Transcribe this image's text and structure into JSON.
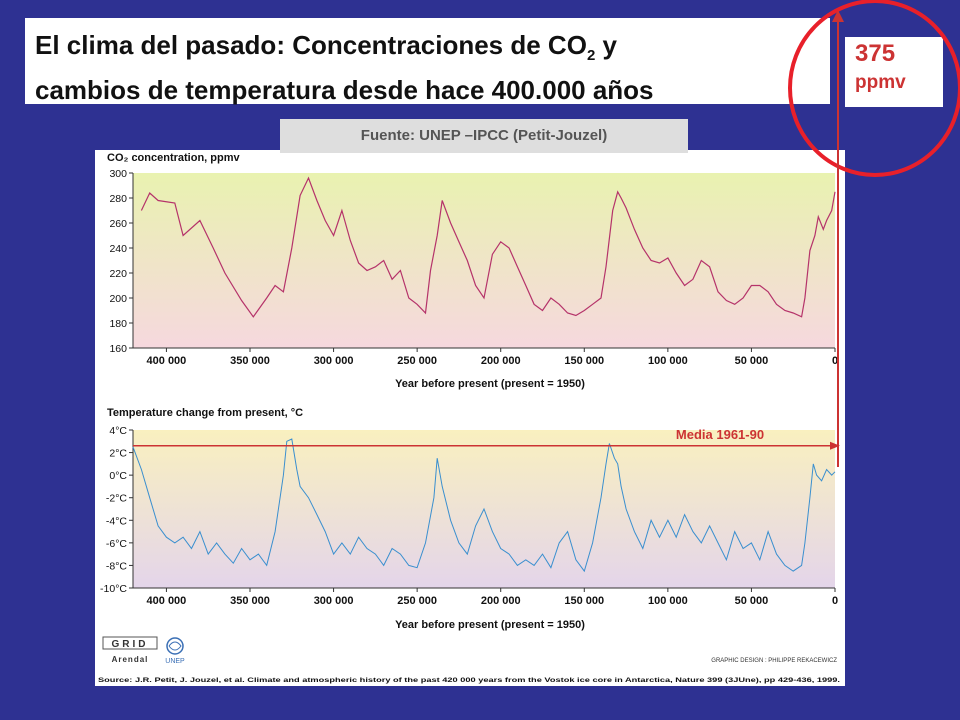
{
  "slide": {
    "title_line1_prefix": "El clima del pasado: Concentraciones de CO",
    "title_line1_sub": "2",
    "title_line1_suffix": " y",
    "title_line2": "cambios de temperatura desde hace 400.000 años",
    "source_tab": "Fuente: UNEP –IPCC (Petit-Jouzel)",
    "annotation_value": "375",
    "annotation_unit": "ppmv",
    "colors": {
      "background": "#2e3192",
      "annotation_red": "#cc3333"
    }
  },
  "chart_data": [
    {
      "type": "line",
      "title": "CO₂ concentration, ppmv",
      "xlabel": "Year before present (present = 1950)",
      "x_ticks": [
        "400 000",
        "350 000",
        "300 000",
        "250 000",
        "200 000",
        "150 000",
        "100 000",
        "50 000",
        "0"
      ],
      "y_ticks": [
        "300",
        "280",
        "260",
        "240",
        "220",
        "200",
        "180",
        "160"
      ],
      "xlim": [
        420000,
        0
      ],
      "ylim": [
        160,
        300
      ],
      "grid": false,
      "line_color": "#b5336a",
      "series": [
        {
          "x": [
            415000,
            410000,
            405000,
            395000,
            390000,
            380000,
            372000,
            365000,
            355000,
            348000,
            340000,
            335000,
            330000,
            325000,
            320000,
            315000,
            310000,
            305000,
            300000,
            295000,
            290000,
            285000,
            280000,
            275000,
            270000,
            265000,
            260000,
            255000,
            250000,
            245000,
            242000,
            238000,
            235000,
            230000,
            225000,
            220000,
            215000,
            210000,
            205000,
            200000,
            195000,
            190000,
            185000,
            180000,
            175000,
            170000,
            165000,
            160000,
            155000,
            150000,
            145000,
            140000,
            137000,
            133000,
            130000,
            128000,
            125000,
            120000,
            115000,
            110000,
            105000,
            100000,
            95000,
            90000,
            85000,
            80000,
            75000,
            70000,
            65000,
            60000,
            55000,
            50000,
            45000,
            40000,
            35000,
            30000,
            25000,
            20000,
            18000,
            15000,
            12000,
            10000,
            7000,
            5000,
            2000,
            0
          ],
          "values": [
            270,
            284,
            278,
            276,
            250,
            262,
            240,
            220,
            198,
            185,
            200,
            210,
            205,
            240,
            282,
            296,
            278,
            262,
            250,
            270,
            246,
            228,
            222,
            225,
            230,
            215,
            222,
            200,
            195,
            188,
            222,
            250,
            278,
            260,
            245,
            230,
            210,
            200,
            235,
            245,
            240,
            225,
            210,
            195,
            190,
            200,
            195,
            188,
            186,
            190,
            195,
            200,
            225,
            270,
            285,
            280,
            272,
            255,
            240,
            230,
            228,
            232,
            220,
            210,
            215,
            230,
            225,
            205,
            198,
            195,
            200,
            210,
            210,
            205,
            195,
            190,
            188,
            185,
            200,
            238,
            250,
            265,
            255,
            262,
            270,
            285
          ]
        }
      ]
    },
    {
      "type": "line",
      "title": "Temperature change from present, °C",
      "xlabel": "Year before present (present = 1950)",
      "x_ticks": [
        "400 000",
        "350 000",
        "300 000",
        "250 000",
        "200 000",
        "150 000",
        "100 000",
        "50 000",
        "0"
      ],
      "y_ticks": [
        "4°C",
        "2°C",
        "0°C",
        "-2°C",
        "-4°C",
        "-6°C",
        "-8°C",
        "-10°C"
      ],
      "xlim": [
        420000,
        0
      ],
      "ylim": [
        -10,
        4
      ],
      "grid": false,
      "line_color": "#3a8fcf",
      "annotation": "Media 1961-90",
      "series": [
        {
          "x": [
            420000,
            415000,
            410000,
            405000,
            400000,
            395000,
            390000,
            385000,
            380000,
            375000,
            370000,
            365000,
            360000,
            355000,
            350000,
            345000,
            340000,
            335000,
            330000,
            328000,
            325000,
            322000,
            320000,
            315000,
            310000,
            305000,
            300000,
            295000,
            290000,
            285000,
            280000,
            275000,
            270000,
            265000,
            260000,
            255000,
            250000,
            245000,
            240000,
            238000,
            235000,
            230000,
            225000,
            220000,
            215000,
            210000,
            205000,
            200000,
            195000,
            190000,
            185000,
            180000,
            175000,
            170000,
            165000,
            160000,
            155000,
            150000,
            145000,
            140000,
            137000,
            135000,
            132000,
            130000,
            128000,
            125000,
            120000,
            115000,
            110000,
            105000,
            100000,
            95000,
            90000,
            85000,
            80000,
            75000,
            70000,
            65000,
            60000,
            55000,
            50000,
            45000,
            40000,
            35000,
            30000,
            25000,
            20000,
            18000,
            15000,
            13000,
            11000,
            8000,
            5000,
            2000,
            0
          ],
          "values": [
            2.5,
            0.5,
            -2.0,
            -4.5,
            -5.5,
            -6.0,
            -5.5,
            -6.5,
            -5.0,
            -7.0,
            -6.0,
            -7.0,
            -7.8,
            -6.5,
            -7.5,
            -7.0,
            -8.0,
            -5.0,
            0.0,
            3.0,
            3.2,
            0.5,
            -1.0,
            -2.0,
            -3.5,
            -5.0,
            -7.0,
            -6.0,
            -7.0,
            -5.5,
            -6.5,
            -7.0,
            -8.0,
            -6.5,
            -7.0,
            -8.0,
            -8.2,
            -6.0,
            -2.0,
            1.5,
            -1.0,
            -4.0,
            -6.0,
            -7.0,
            -4.5,
            -3.0,
            -5.0,
            -6.5,
            -7.0,
            -8.0,
            -7.5,
            -8.0,
            -7.0,
            -8.2,
            -6.0,
            -5.0,
            -7.5,
            -8.5,
            -6.0,
            -2.0,
            1.0,
            2.8,
            1.5,
            1.0,
            -1.0,
            -3.0,
            -5.0,
            -6.5,
            -4.0,
            -5.5,
            -4.0,
            -5.5,
            -3.5,
            -5.0,
            -6.0,
            -4.5,
            -6.0,
            -7.5,
            -5.0,
            -6.5,
            -6.0,
            -7.5,
            -5.0,
            -7.0,
            -8.0,
            -8.5,
            -8.0,
            -6.0,
            -2.0,
            1.0,
            0.0,
            -0.5,
            0.5,
            0.0,
            0.3
          ]
        }
      ]
    }
  ],
  "panel": {
    "logo_text_top": "GRID",
    "logo_text_bottom": "Arendal",
    "unep_label": "UNEP",
    "credit": "GRAPHIC DESIGN : PHILIPPE REKACEWICZ",
    "citation": "Source: J.R. Petit, J. Jouzel, et al. Climate and atmospheric history of the past 420 000 years from the Vostok ice core in Antarctica, Nature 399 (3JUne), pp 429-436, 1999."
  }
}
